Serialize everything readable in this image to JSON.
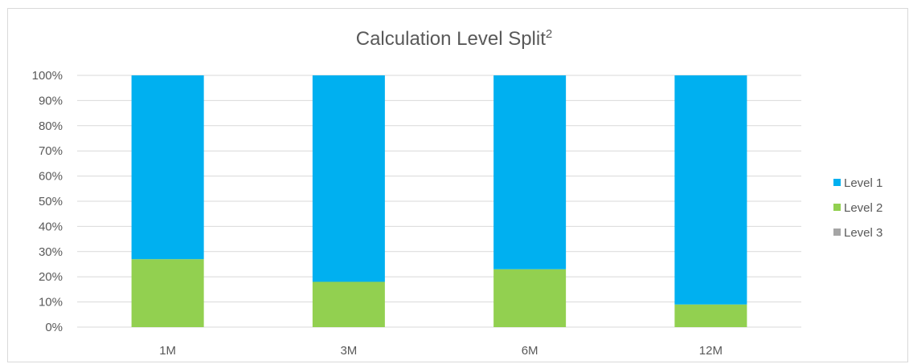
{
  "chart_data": {
    "type": "bar",
    "stacked": true,
    "percent_stacked": true,
    "title": "Calculation Level Split",
    "title_superscript": "2",
    "categories": [
      "1M",
      "3M",
      "6M",
      "12M"
    ],
    "series": [
      {
        "name": "Level 1",
        "color": "#00B0F0",
        "values": [
          73,
          82,
          77,
          91
        ]
      },
      {
        "name": "Level 2",
        "color": "#92D050",
        "values": [
          27,
          18,
          23,
          9
        ]
      },
      {
        "name": "Level 3",
        "color": "#A5A5A5",
        "values": [
          0,
          0,
          0,
          0
        ]
      }
    ],
    "y_ticks": [
      "0%",
      "10%",
      "20%",
      "30%",
      "40%",
      "50%",
      "60%",
      "70%",
      "80%",
      "90%",
      "100%"
    ],
    "ylim": [
      0,
      100
    ],
    "grid": true,
    "legend_position": "right",
    "legend_order": [
      "Level 1",
      "Level 2",
      "Level 3"
    ]
  }
}
